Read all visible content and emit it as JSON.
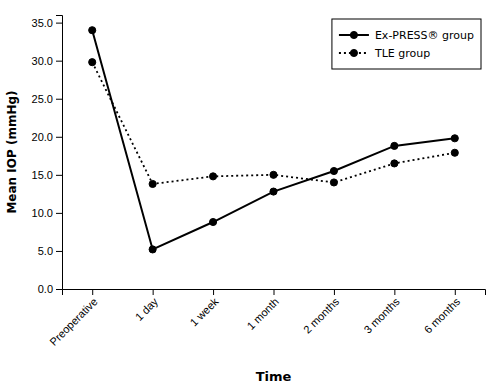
{
  "chart_data": {
    "type": "line",
    "categories": [
      "Preoperative",
      "1 day",
      "1 week",
      "1 month",
      "2 months",
      "3 months",
      "6 months"
    ],
    "series": [
      {
        "name": "Ex-PRESS® group",
        "color": "#000000",
        "line_style": "solid",
        "marker": "circle",
        "values": [
          34.0,
          5.2,
          8.8,
          12.8,
          15.5,
          18.8,
          19.8
        ]
      },
      {
        "name": "TLE group",
        "color": "#000000",
        "line_style": "dotted",
        "marker": "circle",
        "values": [
          29.8,
          13.8,
          14.8,
          15.0,
          14.0,
          16.5,
          17.9
        ]
      }
    ],
    "xlabel": "Time",
    "ylabel": "Mean IOP (mmHg)",
    "ylim": [
      0.0,
      36.0
    ],
    "yticks": [
      {
        "value": 0.0,
        "label": "0.0"
      },
      {
        "value": 5.0,
        "label": "5.0"
      },
      {
        "value": 10.0,
        "label": "10.0"
      },
      {
        "value": 15.0,
        "label": "15.0"
      },
      {
        "value": 20.0,
        "label": "20.0"
      },
      {
        "value": 25.0,
        "label": "25.0"
      },
      {
        "value": 30.0,
        "label": "30.0"
      },
      {
        "value": 35.0,
        "label": "35.0"
      }
    ],
    "legend": "upper right",
    "grid": false
  }
}
